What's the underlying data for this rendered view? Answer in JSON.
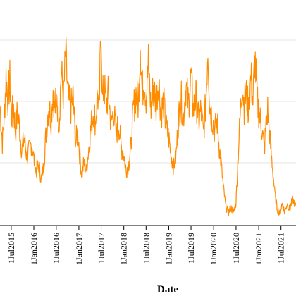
{
  "chart_data": {
    "type": "line",
    "xlabel": "Date",
    "ylabel": "",
    "grid": {
      "horizontal": true,
      "vertical": false
    },
    "legend": "none",
    "line_color": "#FF8C00",
    "x_range": [
      "2015-04-01",
      "2021-10-31"
    ],
    "x_ticks": [
      "1Jul2015",
      "1Jan2016",
      "1Jul2016",
      "1Jan2017",
      "1Jul2017",
      "1Jan2018",
      "1Jul2018",
      "1Jan2019",
      "1Jul2019",
      "1Jan2020",
      "1Jul2020",
      "1Jan2021",
      "1Jul2021"
    ],
    "x_tick_dates": [
      "2015-07-01",
      "2016-01-01",
      "2016-07-01",
      "2017-01-01",
      "2017-07-01",
      "2018-01-01",
      "2018-07-01",
      "2019-01-01",
      "2019-07-01",
      "2020-01-01",
      "2020-07-01",
      "2021-01-01",
      "2021-07-01"
    ],
    "ylim": [
      0,
      100
    ],
    "y_gridlines": [
      30,
      60,
      90
    ],
    "series": [
      {
        "points": [
          [
            "2015-04-01",
            58
          ],
          [
            "2015-04-20",
            40
          ],
          [
            "2015-05-05",
            52
          ],
          [
            "2015-05-20",
            72
          ],
          [
            "2015-06-05",
            62
          ],
          [
            "2015-06-20",
            70
          ],
          [
            "2015-07-05",
            52
          ],
          [
            "2015-07-20",
            58
          ],
          [
            "2015-08-05",
            45
          ],
          [
            "2015-08-20",
            55
          ],
          [
            "2015-09-05",
            48
          ],
          [
            "2015-09-25",
            36
          ],
          [
            "2015-10-15",
            42
          ],
          [
            "2015-11-05",
            33
          ],
          [
            "2015-11-25",
            36
          ],
          [
            "2015-12-15",
            40
          ],
          [
            "2016-01-01",
            32
          ],
          [
            "2016-01-20",
            26
          ],
          [
            "2016-02-10",
            29
          ],
          [
            "2016-03-01",
            22
          ],
          [
            "2016-03-20",
            28
          ],
          [
            "2016-04-10",
            45
          ],
          [
            "2016-04-30",
            58
          ],
          [
            "2016-05-20",
            52
          ],
          [
            "2016-06-05",
            66
          ],
          [
            "2016-06-20",
            56
          ],
          [
            "2016-07-05",
            62
          ],
          [
            "2016-07-25",
            50
          ],
          [
            "2016-08-10",
            75
          ],
          [
            "2016-08-30",
            62
          ],
          [
            "2016-09-15",
            83
          ],
          [
            "2016-10-05",
            62
          ],
          [
            "2016-10-25",
            56
          ],
          [
            "2016-11-15",
            62
          ],
          [
            "2016-12-05",
            40
          ],
          [
            "2016-12-25",
            45
          ],
          [
            "2017-01-10",
            32
          ],
          [
            "2017-01-25",
            24
          ],
          [
            "2017-02-10",
            30
          ],
          [
            "2017-03-01",
            26
          ],
          [
            "2017-03-20",
            36
          ],
          [
            "2017-04-10",
            48
          ],
          [
            "2017-04-30",
            56
          ],
          [
            "2017-05-15",
            50
          ],
          [
            "2017-06-01",
            64
          ],
          [
            "2017-06-15",
            54
          ],
          [
            "2017-07-01",
            100
          ],
          [
            "2017-07-10",
            60
          ],
          [
            "2017-07-25",
            68
          ],
          [
            "2017-08-10",
            58
          ],
          [
            "2017-08-30",
            64
          ],
          [
            "2017-09-20",
            48
          ],
          [
            "2017-10-10",
            56
          ],
          [
            "2017-11-01",
            44
          ],
          [
            "2017-11-20",
            50
          ],
          [
            "2017-12-10",
            38
          ],
          [
            "2018-01-01",
            34
          ],
          [
            "2018-01-20",
            26
          ],
          [
            "2018-02-10",
            30
          ],
          [
            "2018-03-01",
            38
          ],
          [
            "2018-03-20",
            56
          ],
          [
            "2018-04-10",
            64
          ],
          [
            "2018-04-30",
            58
          ],
          [
            "2018-05-15",
            90
          ],
          [
            "2018-05-30",
            64
          ],
          [
            "2018-06-15",
            72
          ],
          [
            "2018-07-01",
            62
          ],
          [
            "2018-07-20",
            78
          ],
          [
            "2018-08-10",
            56
          ],
          [
            "2018-08-30",
            68
          ],
          [
            "2018-09-20",
            58
          ],
          [
            "2018-10-10",
            72
          ],
          [
            "2018-10-30",
            54
          ],
          [
            "2018-11-20",
            60
          ],
          [
            "2018-12-10",
            48
          ],
          [
            "2019-01-01",
            42
          ],
          [
            "2019-01-20",
            34
          ],
          [
            "2019-02-10",
            28
          ],
          [
            "2019-03-01",
            33
          ],
          [
            "2019-03-20",
            50
          ],
          [
            "2019-04-10",
            62
          ],
          [
            "2019-04-30",
            52
          ],
          [
            "2019-05-20",
            68
          ],
          [
            "2019-06-10",
            58
          ],
          [
            "2019-07-01",
            72
          ],
          [
            "2019-07-20",
            56
          ],
          [
            "2019-08-10",
            62
          ],
          [
            "2019-09-01",
            50
          ],
          [
            "2019-09-20",
            56
          ],
          [
            "2019-10-10",
            44
          ],
          [
            "2019-10-30",
            60
          ],
          [
            "2019-11-15",
            88
          ],
          [
            "2019-12-01",
            58
          ],
          [
            "2019-12-20",
            52
          ],
          [
            "2020-01-10",
            46
          ],
          [
            "2020-01-30",
            50
          ],
          [
            "2020-02-15",
            38
          ],
          [
            "2020-03-01",
            30
          ],
          [
            "2020-03-20",
            18
          ],
          [
            "2020-04-10",
            8
          ],
          [
            "2020-05-01",
            6
          ],
          [
            "2020-05-20",
            8
          ],
          [
            "2020-06-10",
            6
          ],
          [
            "2020-06-30",
            10
          ],
          [
            "2020-07-15",
            30
          ],
          [
            "2020-08-01",
            50
          ],
          [
            "2020-08-20",
            70
          ],
          [
            "2020-09-05",
            58
          ],
          [
            "2020-09-20",
            64
          ],
          [
            "2020-10-10",
            56
          ],
          [
            "2020-10-30",
            72
          ],
          [
            "2020-11-15",
            60
          ],
          [
            "2020-12-01",
            82
          ],
          [
            "2020-12-20",
            60
          ],
          [
            "2021-01-10",
            52
          ],
          [
            "2021-01-30",
            46
          ],
          [
            "2021-02-15",
            36
          ],
          [
            "2021-03-01",
            48
          ],
          [
            "2021-03-15",
            56
          ],
          [
            "2021-04-01",
            42
          ],
          [
            "2021-04-20",
            30
          ],
          [
            "2021-05-10",
            16
          ],
          [
            "2021-05-30",
            8
          ],
          [
            "2021-06-20",
            5
          ],
          [
            "2021-07-10",
            10
          ],
          [
            "2021-07-30",
            6
          ],
          [
            "2021-08-20",
            10
          ],
          [
            "2021-09-10",
            7
          ],
          [
            "2021-10-01",
            12
          ],
          [
            "2021-10-31",
            9
          ]
        ]
      }
    ]
  }
}
